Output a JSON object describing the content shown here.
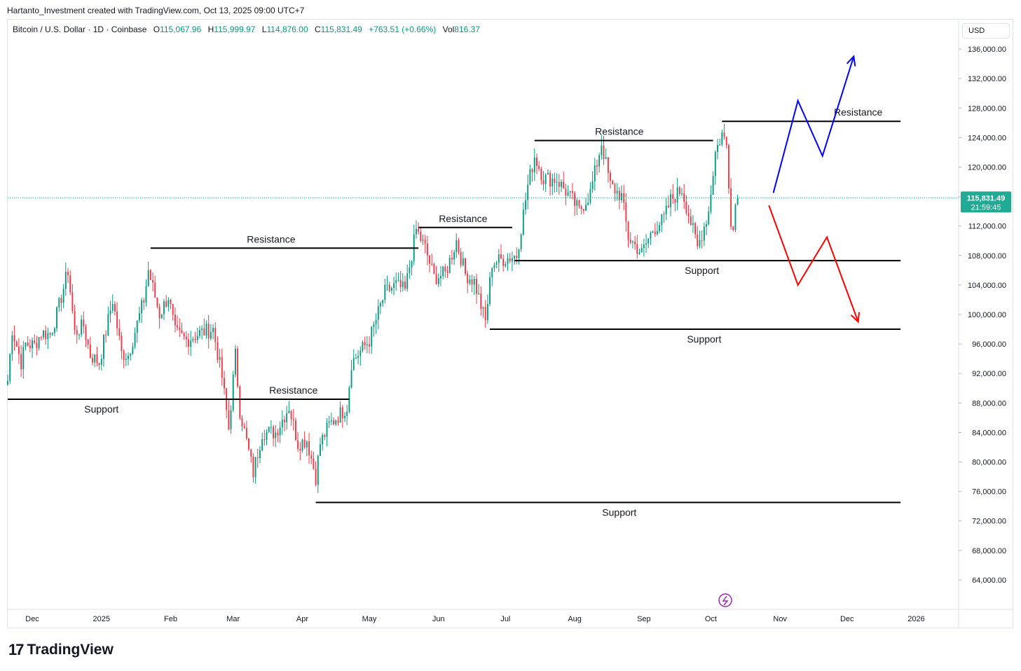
{
  "credit": "Hartanto_Investment created with TradingView.com, Oct 13, 2025 09:00 UTC+7",
  "legend": {
    "symbol": "Bitcoin / U.S. Dollar · 1D · Coinbase",
    "open_label": "O",
    "open": "115,067.96",
    "high_label": "H",
    "high": "115,999.97",
    "low_label": "L",
    "low": "114,876.00",
    "close_label": "C",
    "close": "115,831.49",
    "change": "+763.51 (+0.66%)",
    "vol_label": "Vol",
    "vol": "816.37"
  },
  "currency_button": "USD",
  "brand": {
    "logo": "17",
    "name": "TradingView"
  },
  "colors": {
    "up": "#089981",
    "down": "#f23645",
    "bull_path": "#0000ff",
    "bear_path": "#ff0000",
    "price_tag": "#22ab94",
    "level_line": "#000000"
  },
  "chart_data": {
    "type": "candlestick",
    "y_axis": {
      "range": [
        60000,
        140000
      ],
      "ticks": [
        64000,
        68000,
        72000,
        76000,
        80000,
        84000,
        88000,
        92000,
        96000,
        100000,
        104000,
        108000,
        112000,
        116000,
        120000,
        124000,
        128000,
        132000,
        136000
      ],
      "tick_labels": [
        "64,000.00",
        "68,000.00",
        "72,000.00",
        "76,000.00",
        "80,000.00",
        "84,000.00",
        "88,000.00",
        "92,000.00",
        "96,000.00",
        "100,000.00",
        "104,000.00",
        "108,000.00",
        "112,000.00",
        "116,000.00",
        "120,000.00",
        "124,000.00",
        "128,000.00",
        "132,000.00",
        "136,000.00"
      ]
    },
    "x_axis": {
      "range": [
        "2024-11-20",
        "2026-01-20"
      ],
      "ticks": [
        "2024-12-01",
        "2025-01-01",
        "2025-02-01",
        "2025-03-01",
        "2025-04-01",
        "2025-05-01",
        "2025-06-01",
        "2025-07-01",
        "2025-08-01",
        "2025-09-01",
        "2025-10-01",
        "2025-11-01",
        "2025-12-01",
        "2026-01-01"
      ],
      "tick_labels": [
        "Dec",
        "2025",
        "Feb",
        "Mar",
        "Apr",
        "May",
        "Jun",
        "Jul",
        "Aug",
        "Sep",
        "Oct",
        "Nov",
        "Dec",
        "2026"
      ]
    },
    "last_price": {
      "value": 115831.49,
      "label": "115,831.49",
      "countdown": "21:59:45"
    },
    "price_path": [
      [
        "2024-11-20",
        91000
      ],
      [
        "2024-11-22",
        98000
      ],
      [
        "2024-11-26",
        93500
      ],
      [
        "2024-11-28",
        96000
      ],
      [
        "2024-12-02",
        95800
      ],
      [
        "2024-12-05",
        97500
      ],
      [
        "2024-12-09",
        97300
      ],
      [
        "2024-12-12",
        100000
      ],
      [
        "2024-12-17",
        106000
      ],
      [
        "2024-12-20",
        97500
      ],
      [
        "2024-12-24",
        98500
      ],
      [
        "2024-12-27",
        94500
      ],
      [
        "2024-12-31",
        93500
      ],
      [
        "2025-01-06",
        102000
      ],
      [
        "2025-01-10",
        94700
      ],
      [
        "2025-01-13",
        94500
      ],
      [
        "2025-01-20",
        102000
      ],
      [
        "2025-01-22",
        106000
      ],
      [
        "2025-01-27",
        100000
      ],
      [
        "2025-01-31",
        102500
      ],
      [
        "2025-02-03",
        97500
      ],
      [
        "2025-02-08",
        96500
      ],
      [
        "2025-02-14",
        97500
      ],
      [
        "2025-02-20",
        98000
      ],
      [
        "2025-02-24",
        91500
      ],
      [
        "2025-02-27",
        84500
      ],
      [
        "2025-03-02",
        94500
      ],
      [
        "2025-03-04",
        87000
      ],
      [
        "2025-03-10",
        78500
      ],
      [
        "2025-03-14",
        84000
      ],
      [
        "2025-03-20",
        84000
      ],
      [
        "2025-03-26",
        87500
      ],
      [
        "2025-03-30",
        82500
      ],
      [
        "2025-04-03",
        83000
      ],
      [
        "2025-04-07",
        78000
      ],
      [
        "2025-04-09",
        82500
      ],
      [
        "2025-04-13",
        85000
      ],
      [
        "2025-04-21",
        87500
      ],
      [
        "2025-04-23",
        93500
      ],
      [
        "2025-05-01",
        96500
      ],
      [
        "2025-05-08",
        103000
      ],
      [
        "2025-05-13",
        104000
      ],
      [
        "2025-05-17",
        103200
      ],
      [
        "2025-05-22",
        111500
      ],
      [
        "2025-05-26",
        109000
      ],
      [
        "2025-05-30",
        105000
      ],
      [
        "2025-06-04",
        105500
      ],
      [
        "2025-06-09",
        110000
      ],
      [
        "2025-06-13",
        105500
      ],
      [
        "2025-06-17",
        104500
      ],
      [
        "2025-06-22",
        99000
      ],
      [
        "2025-06-25",
        107000
      ],
      [
        "2025-06-30",
        107500
      ],
      [
        "2025-07-06",
        108000
      ],
      [
        "2025-07-11",
        117500
      ],
      [
        "2025-07-14",
        121500
      ],
      [
        "2025-07-18",
        118500
      ],
      [
        "2025-07-24",
        118300
      ],
      [
        "2025-07-31",
        115500
      ],
      [
        "2025-08-03",
        114000
      ],
      [
        "2025-08-08",
        116500
      ],
      [
        "2025-08-13",
        123300
      ],
      [
        "2025-08-17",
        117500
      ],
      [
        "2025-08-22",
        116000
      ],
      [
        "2025-08-25",
        110500
      ],
      [
        "2025-08-31",
        108300
      ],
      [
        "2025-09-05",
        111500
      ],
      [
        "2025-09-10",
        113000
      ],
      [
        "2025-09-13",
        115500
      ],
      [
        "2025-09-18",
        117000
      ],
      [
        "2025-09-22",
        112500
      ],
      [
        "2025-09-25",
        109000
      ],
      [
        "2025-09-30",
        114000
      ],
      [
        "2025-10-03",
        122000
      ],
      [
        "2025-10-06",
        124500
      ],
      [
        "2025-10-08",
        123000
      ],
      [
        "2025-10-10",
        113000
      ],
      [
        "2025-10-11",
        111500
      ],
      [
        "2025-10-12",
        115000
      ],
      [
        "2025-10-13",
        115831
      ]
    ],
    "levels": [
      {
        "kind": "support",
        "label": "Support",
        "price": 88500,
        "from": "2024-11-20",
        "to": "2025-03-04",
        "label_at": "2025-01-01",
        "label_pos": "below"
      },
      {
        "kind": "resistance",
        "label": "Resistance",
        "price": 109000,
        "from": "2025-01-23",
        "to": "2025-05-23",
        "label_at": "2025-03-18",
        "label_pos": "above"
      },
      {
        "kind": "resistance",
        "label": "Resistance",
        "price": 88500,
        "from": "2025-03-04",
        "to": "2025-04-22",
        "label_at": "2025-03-28",
        "label_pos": "above"
      },
      {
        "kind": "resistance",
        "label": "Resistance",
        "price": 111800,
        "from": "2025-05-23",
        "to": "2025-07-04",
        "label_at": "2025-06-12",
        "label_pos": "above"
      },
      {
        "kind": "resistance",
        "label": "Resistance",
        "price": 123600,
        "from": "2025-07-14",
        "to": "2025-10-02",
        "label_at": "2025-08-21",
        "label_pos": "above"
      },
      {
        "kind": "support",
        "label": "Support",
        "price": 107300,
        "from": "2025-07-05",
        "to": "2025-12-25",
        "label_at": "2025-09-27",
        "label_pos": "below"
      },
      {
        "kind": "resistance",
        "label": "Resistance",
        "price": 126200,
        "from": "2025-10-06",
        "to": "2025-12-25",
        "label_at": "2025-12-06",
        "label_pos": "above"
      },
      {
        "kind": "support",
        "label": "Support",
        "price": 98000,
        "from": "2025-06-24",
        "to": "2025-12-25",
        "label_at": "2025-09-28",
        "label_pos": "below"
      },
      {
        "kind": "support",
        "label": "Support",
        "price": 74500,
        "from": "2025-04-07",
        "to": "2025-12-25",
        "label_at": "2025-08-21",
        "label_pos": "below"
      }
    ],
    "projections": [
      {
        "name": "bullish",
        "color": "#0000ff",
        "points": [
          [
            "2025-10-29",
            116500
          ],
          [
            "2025-11-09",
            129000
          ],
          [
            "2025-11-20",
            121500
          ],
          [
            "2025-12-04",
            135000
          ]
        ]
      },
      {
        "name": "bearish",
        "color": "#ff0000",
        "points": [
          [
            "2025-10-27",
            114800
          ],
          [
            "2025-11-09",
            104000
          ],
          [
            "2025-11-22",
            110500
          ],
          [
            "2025-12-06",
            99000
          ]
        ]
      }
    ]
  }
}
